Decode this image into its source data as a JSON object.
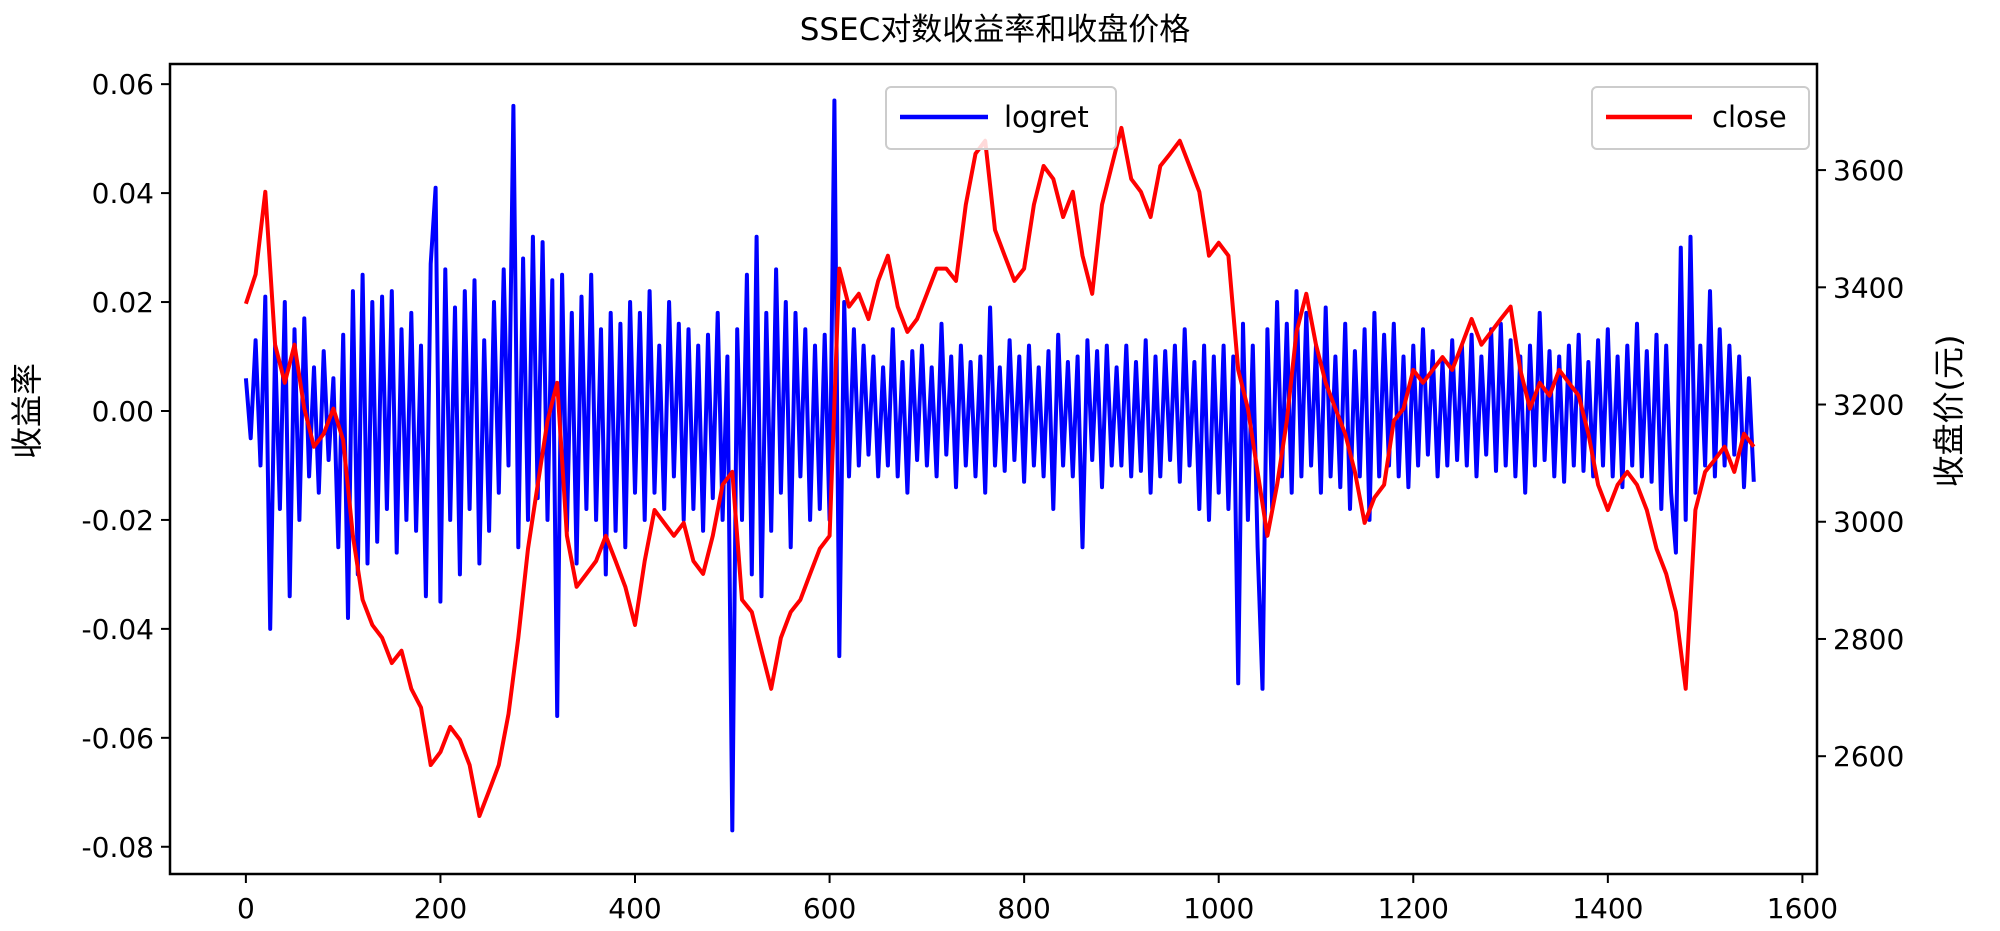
{
  "chart_data": {
    "type": "line",
    "title": "SSEC对数收益率和收盘价格",
    "xlabel": "",
    "ylabel_left": "收益率",
    "ylabel_right": "收盘价(元)",
    "xlim": [
      -78,
      1615
    ],
    "ylim_left": [
      -0.085,
      0.0637
    ],
    "ylim_right": [
      2399,
      3781
    ],
    "x_ticks": [
      0,
      200,
      400,
      600,
      800,
      1000,
      1200,
      1400,
      1600
    ],
    "y_left_ticks": [
      0.06,
      0.04,
      0.02,
      0.0,
      -0.02,
      -0.04,
      -0.06,
      -0.08
    ],
    "y_left_tick_labels": [
      "0.06",
      "0.04",
      "0.02",
      "0.00",
      "-0.02",
      "-0.04",
      "-0.06",
      "-0.08"
    ],
    "y_right_ticks": [
      3600,
      3400,
      3200,
      3000,
      2800,
      2600
    ],
    "grid": false,
    "legends": [
      {
        "label": "logret",
        "color": "#0000ff",
        "placement": "upper-center"
      },
      {
        "label": "close",
        "color": "#ff0000",
        "placement": "upper-right"
      }
    ],
    "series": [
      {
        "name": "logret",
        "axis": "left",
        "color": "#0000ff",
        "x_start": 0,
        "x_step": 5,
        "values": [
          0.006,
          -0.005,
          0.013,
          -0.01,
          0.021,
          -0.04,
          0.012,
          -0.018,
          0.02,
          -0.034,
          0.015,
          -0.02,
          0.017,
          -0.012,
          0.008,
          -0.015,
          0.011,
          -0.009,
          0.006,
          -0.025,
          0.014,
          -0.038,
          0.022,
          -0.03,
          0.025,
          -0.028,
          0.02,
          -0.024,
          0.021,
          -0.018,
          0.022,
          -0.026,
          0.015,
          -0.02,
          0.018,
          -0.022,
          0.012,
          -0.034,
          0.027,
          0.041,
          -0.035,
          0.026,
          -0.02,
          0.019,
          -0.03,
          0.022,
          -0.018,
          0.024,
          -0.028,
          0.013,
          -0.022,
          0.02,
          -0.015,
          0.026,
          -0.01,
          0.056,
          -0.025,
          0.028,
          -0.02,
          0.032,
          -0.016,
          0.031,
          -0.02,
          0.024,
          -0.056,
          0.025,
          -0.022,
          0.018,
          -0.028,
          0.021,
          -0.018,
          0.025,
          -0.02,
          0.015,
          -0.03,
          0.018,
          -0.022,
          0.016,
          -0.025,
          0.02,
          -0.015,
          0.018,
          -0.02,
          0.022,
          -0.015,
          0.012,
          -0.018,
          0.02,
          -0.012,
          0.016,
          -0.02,
          0.015,
          -0.018,
          0.012,
          -0.022,
          0.014,
          -0.016,
          0.018,
          -0.02,
          0.01,
          -0.077,
          0.015,
          -0.02,
          0.025,
          -0.03,
          0.032,
          -0.034,
          0.018,
          -0.022,
          0.026,
          -0.015,
          0.02,
          -0.025,
          0.018,
          -0.012,
          0.015,
          -0.02,
          0.012,
          -0.018,
          0.014,
          -0.02,
          0.057,
          -0.045,
          0.02,
          -0.012,
          0.015,
          -0.01,
          0.012,
          -0.008,
          0.01,
          -0.012,
          0.008,
          -0.01,
          0.015,
          -0.012,
          0.009,
          -0.015,
          0.011,
          -0.009,
          0.012,
          -0.01,
          0.008,
          -0.012,
          0.016,
          -0.008,
          0.01,
          -0.014,
          0.012,
          -0.01,
          0.009,
          -0.012,
          0.01,
          -0.015,
          0.019,
          -0.01,
          0.008,
          -0.011,
          0.013,
          -0.009,
          0.01,
          -0.013,
          0.012,
          -0.01,
          0.008,
          -0.012,
          0.011,
          -0.018,
          0.014,
          -0.01,
          0.009,
          -0.012,
          0.01,
          -0.025,
          0.013,
          -0.009,
          0.011,
          -0.014,
          0.012,
          -0.01,
          0.008,
          -0.01,
          0.012,
          -0.012,
          0.009,
          -0.011,
          0.013,
          -0.015,
          0.01,
          -0.012,
          0.011,
          -0.009,
          0.012,
          -0.013,
          0.015,
          -0.01,
          0.009,
          -0.018,
          0.012,
          -0.02,
          0.01,
          -0.015,
          0.012,
          -0.018,
          0.01,
          -0.05,
          0.016,
          -0.02,
          0.012,
          -0.025,
          -0.051,
          0.015,
          -0.018,
          0.02,
          -0.012,
          0.016,
          -0.015,
          0.022,
          -0.012,
          0.018,
          -0.01,
          0.012,
          -0.015,
          0.019,
          -0.012,
          0.01,
          -0.014,
          0.016,
          -0.018,
          0.011,
          -0.012,
          0.015,
          -0.02,
          0.018,
          -0.012,
          0.014,
          -0.01,
          0.016,
          -0.012,
          0.01,
          -0.014,
          0.012,
          -0.01,
          0.015,
          -0.008,
          0.011,
          -0.012,
          0.009,
          -0.01,
          0.013,
          -0.009,
          0.012,
          -0.01,
          0.014,
          -0.012,
          0.01,
          -0.008,
          0.015,
          -0.011,
          0.016,
          -0.01,
          0.013,
          -0.012,
          0.01,
          -0.015,
          0.012,
          -0.01,
          0.018,
          -0.009,
          0.011,
          -0.012,
          0.01,
          -0.013,
          0.012,
          -0.01,
          0.014,
          -0.011,
          0.009,
          -0.012,
          0.013,
          -0.01,
          0.015,
          -0.012,
          0.01,
          -0.014,
          0.012,
          -0.01,
          0.016,
          -0.012,
          0.011,
          -0.013,
          0.014,
          -0.018,
          0.012,
          -0.015,
          -0.026,
          0.03,
          -0.02,
          0.032,
          -0.015,
          0.012,
          -0.01,
          0.022,
          -0.012,
          0.015,
          -0.01,
          0.012,
          -0.008,
          0.01,
          -0.014,
          0.006,
          -0.013
        ]
      },
      {
        "name": "close",
        "axis": "right",
        "color": "#ff0000",
        "x_start": 0,
        "x_step": 10,
        "values": [
          3372,
          3422,
          3563,
          3302,
          3237,
          3302,
          3193,
          3128,
          3150,
          3193,
          3139,
          2976,
          2867,
          2824,
          2802,
          2759,
          2780,
          2715,
          2683,
          2585,
          2607,
          2650,
          2628,
          2585,
          2498,
          2541,
          2585,
          2672,
          2802,
          2954,
          3063,
          3172,
          3237,
          2976,
          2889,
          2911,
          2933,
          2976,
          2933,
          2889,
          2824,
          2933,
          3020,
          2998,
          2976,
          2998,
          2933,
          2911,
          2976,
          3063,
          3085,
          2867,
          2846,
          2780,
          2715,
          2802,
          2846,
          2867,
          2911,
          2954,
          2976,
          3432,
          3367,
          3389,
          3346,
          3411,
          3454,
          3367,
          3324,
          3346,
          3389,
          3432,
          3432,
          3411,
          3541,
          3628,
          3650,
          3498,
          3454,
          3411,
          3432,
          3541,
          3607,
          3585,
          3520,
          3563,
          3454,
          3389,
          3541,
          3607,
          3672,
          3585,
          3563,
          3520,
          3607,
          3628,
          3650,
          3607,
          3563,
          3454,
          3476,
          3454,
          3259,
          3193,
          3085,
          2976,
          3063,
          3172,
          3324,
          3389,
          3302,
          3237,
          3193,
          3150,
          3085,
          2998,
          3041,
          3063,
          3172,
          3193,
          3259,
          3237,
          3259,
          3281,
          3259,
          3302,
          3346,
          3302,
          3324,
          3346,
          3367,
          3259,
          3193,
          3237,
          3215,
          3259,
          3237,
          3215,
          3150,
          3063,
          3020,
          3063,
          3085,
          3063,
          3020,
          2954,
          2911,
          2846,
          2715,
          3020,
          3085,
          3106,
          3128,
          3085,
          3150,
          3128
        ]
      }
    ]
  }
}
